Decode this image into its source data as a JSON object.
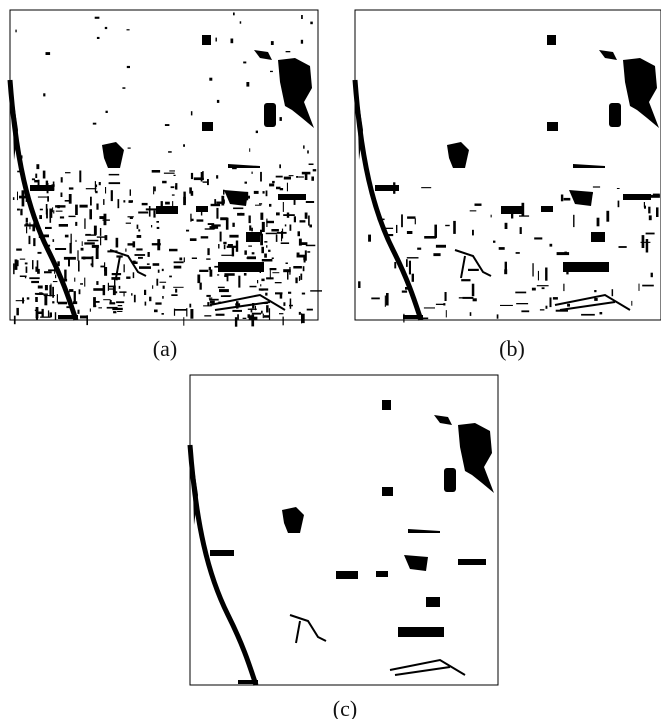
{
  "panels": [
    {
      "label": "(a)"
    },
    {
      "label": "(b)"
    },
    {
      "label": "(c)"
    }
  ]
}
